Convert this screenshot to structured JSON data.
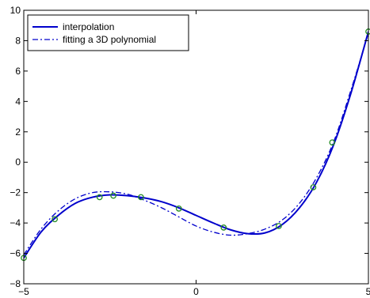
{
  "chart_data": {
    "type": "line",
    "title": "",
    "xlabel": "",
    "ylabel": "",
    "xlim": [
      -5,
      5
    ],
    "ylim": [
      -8,
      10
    ],
    "grid": false,
    "legend_position": "top-left",
    "x_ticks": [
      {
        "value": -5,
        "label": "−5"
      },
      {
        "value": 0,
        "label": "0"
      },
      {
        "value": 5,
        "label": "5"
      }
    ],
    "y_ticks": [
      {
        "value": -8,
        "label": "−8"
      },
      {
        "value": -6,
        "label": "−6"
      },
      {
        "value": -4,
        "label": "−4"
      },
      {
        "value": -2,
        "label": "−2"
      },
      {
        "value": 0,
        "label": "0"
      },
      {
        "value": 2,
        "label": "2"
      },
      {
        "value": 4,
        "label": "4"
      },
      {
        "value": 6,
        "label": "6"
      },
      {
        "value": 8,
        "label": "8"
      },
      {
        "value": 10,
        "label": "10"
      }
    ],
    "series": [
      {
        "name": "interpolation",
        "style": "solid",
        "color": "#0000cc",
        "x": [
          -5.0,
          -4.5,
          -4.0,
          -3.5,
          -3.0,
          -2.5,
          -2.0,
          -1.5,
          -1.0,
          -0.5,
          0.0,
          0.5,
          1.0,
          1.5,
          2.0,
          2.5,
          3.0,
          3.5,
          4.0,
          4.5,
          5.0
        ],
        "y": [
          -6.3,
          -4.6,
          -3.5,
          -2.7,
          -2.3,
          -2.15,
          -2.2,
          -2.35,
          -2.6,
          -3.0,
          -3.5,
          -4.0,
          -4.45,
          -4.7,
          -4.65,
          -4.1,
          -3.0,
          -1.3,
          1.2,
          4.6,
          8.6
        ]
      },
      {
        "name": "fitting a 3D polynomial",
        "style": "dashdot",
        "color": "#0000cc",
        "x": [
          -5.0,
          -4.5,
          -4.0,
          -3.5,
          -3.0,
          -2.5,
          -2.0,
          -1.5,
          -1.0,
          -0.5,
          0.0,
          0.5,
          1.0,
          1.5,
          2.0,
          2.5,
          3.0,
          3.5,
          4.0,
          4.5,
          5.0
        ],
        "y": [
          -6.1,
          -4.4,
          -3.2,
          -2.4,
          -2.0,
          -1.95,
          -2.1,
          -2.5,
          -3.0,
          -3.6,
          -4.2,
          -4.6,
          -4.8,
          -4.7,
          -4.4,
          -3.8,
          -2.7,
          -1.0,
          1.4,
          4.8,
          8.5
        ]
      }
    ],
    "markers": {
      "style": "circle",
      "color": "#228b22",
      "x": [
        -5.0,
        -4.1,
        -2.8,
        -2.4,
        -1.6,
        -0.5,
        0.8,
        2.4,
        3.4,
        3.95,
        5.0
      ],
      "y": [
        -6.3,
        -3.75,
        -2.3,
        -2.2,
        -2.3,
        -3.05,
        -4.3,
        -4.2,
        -1.65,
        1.3,
        8.6
      ]
    }
  }
}
